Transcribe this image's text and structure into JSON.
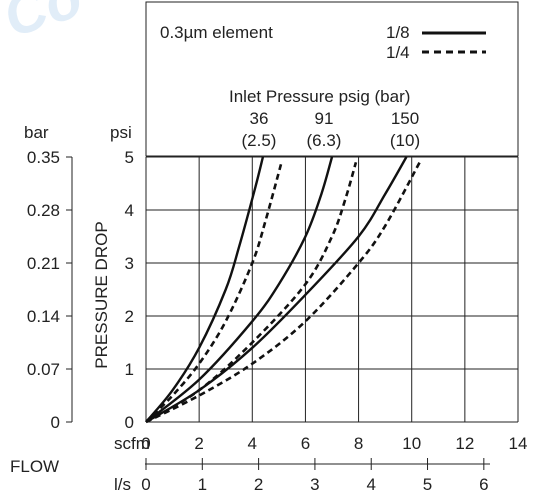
{
  "watermark": "Co",
  "chart_data": {
    "type": "line",
    "title": "0.3µm element",
    "subtitle": "Inlet Pressure psig (bar)",
    "ylabel": "PRESSURE DROP",
    "xlabel": "FLOW",
    "x_unit_primary": "scfm",
    "x_unit_secondary": "l/s",
    "y_unit_primary": "psi",
    "y_unit_secondary": "bar",
    "xlim": [
      0,
      14
    ],
    "ylim": [
      0,
      5
    ],
    "x_ticks": [
      "0",
      "2",
      "4",
      "6",
      "8",
      "10",
      "12",
      "14"
    ],
    "x2_ticks": [
      "0",
      "1",
      "2",
      "3",
      "4",
      "5",
      "6"
    ],
    "y_ticks": [
      "0",
      "1",
      "2",
      "3",
      "4",
      "5"
    ],
    "y2_ticks": [
      "0",
      "0.07",
      "0.14",
      "0.21",
      "0.28",
      "0.35"
    ],
    "grid": true,
    "legend": [
      {
        "label": "1/8",
        "style": "solid"
      },
      {
        "label": "1/4",
        "style": "dashed"
      }
    ],
    "inlet_pressures": [
      {
        "psig": "36",
        "bar": "(2.5)"
      },
      {
        "psig": "91",
        "bar": "(6.3)"
      },
      {
        "psig": "150",
        "bar": "(10)"
      }
    ],
    "series": [
      {
        "name": "36 1/8",
        "style": "solid",
        "x": [
          0,
          1,
          2,
          3,
          3.5,
          4.1,
          4.4
        ],
        "y": [
          0,
          0.6,
          1.4,
          2.5,
          3.3,
          4.4,
          5
        ]
      },
      {
        "name": "36 1/4",
        "style": "dashed",
        "x": [
          0,
          1,
          2,
          3,
          4,
          4.5,
          5.1
        ],
        "y": [
          0,
          0.5,
          1.1,
          1.9,
          3.0,
          3.8,
          4.9
        ]
      },
      {
        "name": "91 1/8",
        "style": "solid",
        "x": [
          0,
          2,
          4,
          5,
          6,
          6.6,
          7.0
        ],
        "y": [
          0,
          0.8,
          1.9,
          2.6,
          3.5,
          4.3,
          5
        ]
      },
      {
        "name": "91 1/4",
        "style": "dashed",
        "x": [
          0,
          2,
          4,
          6,
          7,
          7.5,
          7.9
        ],
        "y": [
          0,
          0.6,
          1.5,
          2.6,
          3.5,
          4.2,
          4.9
        ]
      },
      {
        "name": "150 1/8",
        "style": "solid",
        "x": [
          0,
          2,
          4,
          6,
          8,
          9,
          9.8
        ],
        "y": [
          0,
          0.6,
          1.4,
          2.4,
          3.5,
          4.3,
          5
        ]
      },
      {
        "name": "150 1/4",
        "style": "dashed",
        "x": [
          0,
          2,
          4,
          6,
          8,
          9,
          10.3
        ],
        "y": [
          0,
          0.5,
          1.1,
          1.9,
          3.0,
          3.7,
          4.9
        ]
      }
    ]
  }
}
